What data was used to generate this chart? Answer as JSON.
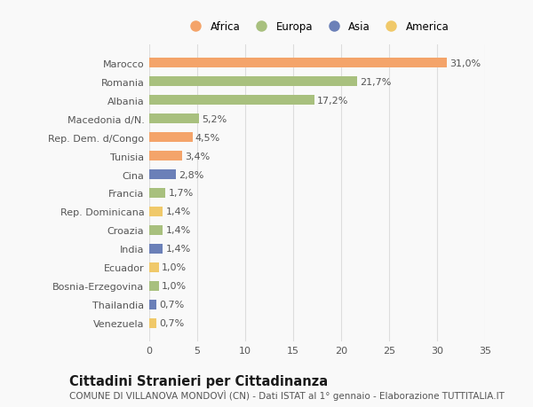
{
  "countries": [
    "Marocco",
    "Romania",
    "Albania",
    "Macedonia d/N.",
    "Rep. Dem. d/Congo",
    "Tunisia",
    "Cina",
    "Francia",
    "Rep. Dominicana",
    "Croazia",
    "India",
    "Ecuador",
    "Bosnia-Erzegovina",
    "Thailandia",
    "Venezuela"
  ],
  "values": [
    31.0,
    21.7,
    17.2,
    5.2,
    4.5,
    3.4,
    2.8,
    1.7,
    1.4,
    1.4,
    1.4,
    1.0,
    1.0,
    0.7,
    0.7
  ],
  "labels": [
    "31,0%",
    "21,7%",
    "17,2%",
    "5,2%",
    "4,5%",
    "3,4%",
    "2,8%",
    "1,7%",
    "1,4%",
    "1,4%",
    "1,4%",
    "1,0%",
    "1,0%",
    "0,7%",
    "0,7%"
  ],
  "continents": [
    "Africa",
    "Europa",
    "Europa",
    "Europa",
    "Africa",
    "Africa",
    "Asia",
    "Europa",
    "America",
    "Europa",
    "Asia",
    "America",
    "Europa",
    "Asia",
    "America"
  ],
  "continent_colors": {
    "Africa": "#F4A46A",
    "Europa": "#A8C07E",
    "Asia": "#6B80B8",
    "America": "#F0C96A"
  },
  "legend_order": [
    "Africa",
    "Europa",
    "Asia",
    "America"
  ],
  "xlim": [
    0,
    35
  ],
  "xticks": [
    0,
    5,
    10,
    15,
    20,
    25,
    30,
    35
  ],
  "title": "Cittadini Stranieri per Cittadinanza",
  "subtitle": "COMUNE DI VILLANOVA MONDOVÌ (CN) - Dati ISTAT al 1° gennaio - Elaborazione TUTTITALIA.IT",
  "bg_color": "#f9f9f9",
  "grid_color": "#dddddd",
  "bar_height": 0.55,
  "label_fontsize": 8,
  "tick_fontsize": 8,
  "title_fontsize": 10.5,
  "subtitle_fontsize": 7.5
}
